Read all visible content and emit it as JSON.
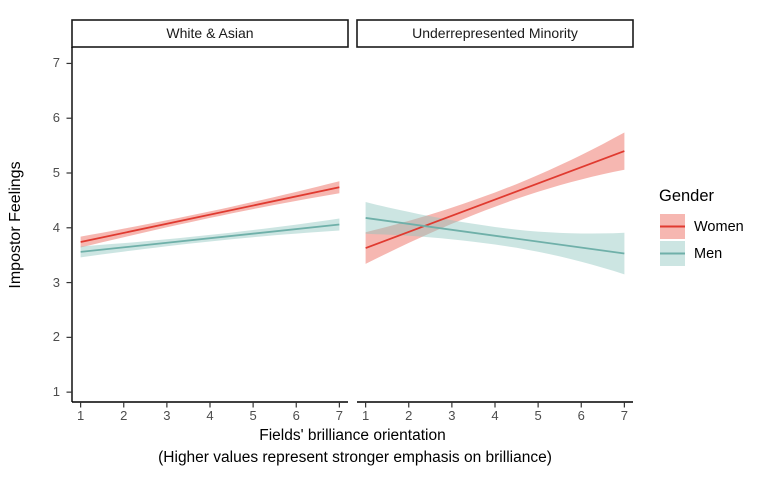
{
  "chart_data": {
    "type": "line",
    "title": "",
    "facets": [
      {
        "label": "White & Asian",
        "series": [
          {
            "name": "Women",
            "x": [
              1,
              7
            ],
            "y": [
              3.74,
              4.74
            ],
            "ci_half": [
              0.1,
              0.06,
              0.11
            ]
          },
          {
            "name": "Men",
            "x": [
              1,
              7
            ],
            "y": [
              3.56,
              4.06
            ],
            "ci_half": [
              0.1,
              0.06,
              0.11
            ]
          }
        ]
      },
      {
        "label": "Underrepresented Minority",
        "series": [
          {
            "name": "Women",
            "x": [
              1,
              7
            ],
            "y": [
              3.63,
              5.4
            ],
            "ci_half": [
              0.29,
              0.13,
              0.34
            ]
          },
          {
            "name": "Men",
            "x": [
              1,
              7
            ],
            "y": [
              4.18,
              3.53
            ],
            "ci_half": [
              0.29,
              0.16,
              0.38
            ]
          }
        ]
      }
    ],
    "x_ticks": [
      1,
      2,
      3,
      4,
      5,
      6,
      7
    ],
    "y_ticks": [
      1,
      2,
      3,
      4,
      5,
      6,
      7
    ],
    "xlim": [
      0.8,
      7.2
    ],
    "ylim": [
      0.82,
      7.3
    ],
    "xlabel": "Fields' brilliance orientation",
    "xlabel_note": "(Higher values represent stronger emphasis on brilliance)",
    "ylabel": "Impostor Feelings",
    "grid": false,
    "legend": {
      "title": "Gender",
      "position": "right",
      "entries": [
        {
          "label": "Women",
          "line_color": "#E03A30",
          "fill_color": "#EE6F63",
          "fill_opacity": 0.5
        },
        {
          "label": "Men",
          "line_color": "#6FB0A9",
          "fill_color": "#8FC5BE",
          "fill_opacity": 0.45
        }
      ]
    },
    "colors": {
      "axis_line": "#000000",
      "tick_mark": "#333333",
      "tick_label": "#4D4D4D",
      "strip_border": "#1A1A1A",
      "strip_fill": "#FFFFFF",
      "background": "#FFFFFF"
    }
  }
}
